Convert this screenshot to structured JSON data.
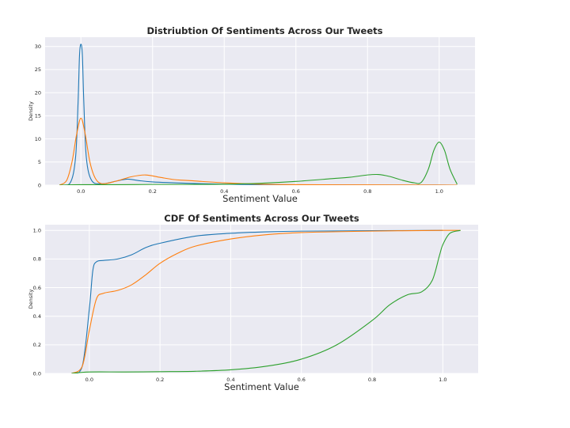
{
  "chart_data": [
    {
      "type": "line",
      "title": "Distriubtion Of Sentiments Across Our Tweets",
      "xlabel": "Sentiment Value",
      "ylabel": "Density",
      "xlim": [
        -0.1,
        1.1
      ],
      "ylim": [
        0,
        32
      ],
      "x_ticks": [
        0.0,
        0.2,
        0.4,
        0.6,
        0.8,
        1.0
      ],
      "y_ticks": [
        0,
        5,
        10,
        15,
        20,
        25,
        30
      ],
      "grid": true,
      "series": [
        {
          "color": "#1f77b4",
          "x": [
            -0.06,
            -0.03,
            -0.015,
            -0.008,
            -0.004,
            0.0,
            0.004,
            0.008,
            0.015,
            0.03,
            0.06,
            0.1,
            0.13,
            0.16,
            0.2,
            0.3,
            0.4,
            0.5,
            0.6,
            0.8,
            1.0,
            1.05
          ],
          "y": [
            0,
            0.5,
            6,
            18,
            28,
            30.5,
            28,
            18,
            6,
            1,
            0.3,
            0.9,
            1.3,
            1.0,
            0.7,
            0.4,
            0.2,
            0.1,
            0.05,
            0.02,
            0.01,
            0
          ]
        },
        {
          "color": "#ff7f0e",
          "x": [
            -0.06,
            -0.04,
            -0.025,
            -0.012,
            0.0,
            0.012,
            0.025,
            0.04,
            0.06,
            0.1,
            0.14,
            0.18,
            0.22,
            0.26,
            0.3,
            0.4,
            0.5,
            0.6,
            0.8,
            1.0,
            1.05
          ],
          "y": [
            0,
            1,
            5,
            11,
            14.5,
            11,
            5,
            1.5,
            0.3,
            0.9,
            1.8,
            2.2,
            1.7,
            1.2,
            1.0,
            0.5,
            0.2,
            0.1,
            0.05,
            0.02,
            0
          ]
        },
        {
          "color": "#2ca02c",
          "x": [
            -0.06,
            0.0,
            0.1,
            0.2,
            0.3,
            0.4,
            0.5,
            0.6,
            0.7,
            0.75,
            0.8,
            0.83,
            0.86,
            0.9,
            0.93,
            0.95,
            0.97,
            0.985,
            1.0,
            1.015,
            1.03,
            1.05
          ],
          "y": [
            0,
            0.1,
            0.1,
            0.15,
            0.15,
            0.2,
            0.4,
            0.8,
            1.4,
            1.7,
            2.2,
            2.3,
            1.9,
            1.0,
            0.5,
            0.6,
            3.5,
            7.5,
            9.3,
            7.5,
            3.5,
            0.2
          ]
        }
      ]
    },
    {
      "type": "line",
      "title": "CDF Of Sentiments Across Our Tweets",
      "xlabel": "Sentiment Value",
      "ylabel": "Density",
      "xlim": [
        -0.125,
        1.1
      ],
      "ylim": [
        0,
        1.04
      ],
      "x_ticks": [
        0.0,
        0.2,
        0.4,
        0.6,
        0.8,
        1.0
      ],
      "y_ticks": [
        0.0,
        0.2,
        0.4,
        0.6,
        0.8,
        1.0
      ],
      "grid": true,
      "series": [
        {
          "color": "#1f77b4",
          "x": [
            -0.05,
            -0.02,
            0.0,
            0.01,
            0.02,
            0.04,
            0.08,
            0.12,
            0.16,
            0.2,
            0.3,
            0.4,
            0.5,
            0.6,
            0.8,
            1.0
          ],
          "y": [
            0,
            0.05,
            0.45,
            0.72,
            0.78,
            0.79,
            0.8,
            0.83,
            0.88,
            0.91,
            0.96,
            0.98,
            0.99,
            0.995,
            0.998,
            1.0
          ]
        },
        {
          "color": "#ff7f0e",
          "x": [
            -0.05,
            -0.02,
            0.0,
            0.02,
            0.04,
            0.08,
            0.12,
            0.16,
            0.2,
            0.25,
            0.3,
            0.4,
            0.5,
            0.6,
            0.8,
            1.0,
            1.05
          ],
          "y": [
            0,
            0.05,
            0.3,
            0.52,
            0.56,
            0.58,
            0.62,
            0.69,
            0.77,
            0.84,
            0.89,
            0.94,
            0.97,
            0.985,
            0.995,
            1.0,
            1.0
          ]
        },
        {
          "color": "#2ca02c",
          "x": [
            -0.05,
            0.0,
            0.1,
            0.2,
            0.3,
            0.4,
            0.5,
            0.6,
            0.7,
            0.8,
            0.85,
            0.9,
            0.94,
            0.97,
            0.99,
            1.0,
            1.02,
            1.05
          ],
          "y": [
            0,
            0.01,
            0.01,
            0.012,
            0.015,
            0.025,
            0.05,
            0.1,
            0.2,
            0.37,
            0.48,
            0.55,
            0.57,
            0.65,
            0.82,
            0.9,
            0.98,
            1.0
          ]
        }
      ]
    }
  ]
}
